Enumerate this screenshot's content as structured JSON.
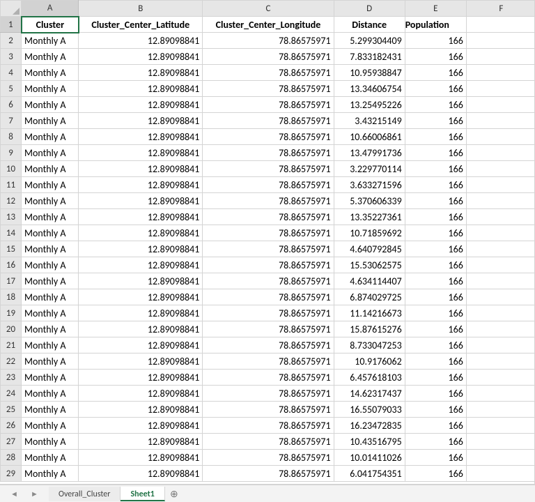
{
  "columns": [
    "A",
    "B",
    "C",
    "D",
    "E",
    "F"
  ],
  "header_row": {
    "A": "Cluster",
    "B": "Cluster_Center_Latitude",
    "C": "Cluster_Center_Longitude",
    "D": "Distance",
    "E": "Population"
  },
  "rows": [
    {
      "n": 2,
      "A": "Monthly A",
      "B": "12.89098841",
      "C": "78.86575971",
      "D": "5.299304409",
      "E": "166"
    },
    {
      "n": 3,
      "A": "Monthly A",
      "B": "12.89098841",
      "C": "78.86575971",
      "D": "7.833182431",
      "E": "166"
    },
    {
      "n": 4,
      "A": "Monthly A",
      "B": "12.89098841",
      "C": "78.86575971",
      "D": "10.95938847",
      "E": "166"
    },
    {
      "n": 5,
      "A": "Monthly A",
      "B": "12.89098841",
      "C": "78.86575971",
      "D": "13.34606754",
      "E": "166"
    },
    {
      "n": 6,
      "A": "Monthly A",
      "B": "12.89098841",
      "C": "78.86575971",
      "D": "13.25495226",
      "E": "166"
    },
    {
      "n": 7,
      "A": "Monthly A",
      "B": "12.89098841",
      "C": "78.86575971",
      "D": "3.43215149",
      "E": "166"
    },
    {
      "n": 8,
      "A": "Monthly A",
      "B": "12.89098841",
      "C": "78.86575971",
      "D": "10.66006861",
      "E": "166"
    },
    {
      "n": 9,
      "A": "Monthly A",
      "B": "12.89098841",
      "C": "78.86575971",
      "D": "13.47991736",
      "E": "166"
    },
    {
      "n": 10,
      "A": "Monthly A",
      "B": "12.89098841",
      "C": "78.86575971",
      "D": "3.229770114",
      "E": "166"
    },
    {
      "n": 11,
      "A": "Monthly A",
      "B": "12.89098841",
      "C": "78.86575971",
      "D": "3.633271596",
      "E": "166"
    },
    {
      "n": 12,
      "A": "Monthly A",
      "B": "12.89098841",
      "C": "78.86575971",
      "D": "5.370606339",
      "E": "166"
    },
    {
      "n": 13,
      "A": "Monthly A",
      "B": "12.89098841",
      "C": "78.86575971",
      "D": "13.35227361",
      "E": "166"
    },
    {
      "n": 14,
      "A": "Monthly A",
      "B": "12.89098841",
      "C": "78.86575971",
      "D": "10.71859692",
      "E": "166"
    },
    {
      "n": 15,
      "A": "Monthly A",
      "B": "12.89098841",
      "C": "78.86575971",
      "D": "4.640792845",
      "E": "166"
    },
    {
      "n": 16,
      "A": "Monthly A",
      "B": "12.89098841",
      "C": "78.86575971",
      "D": "15.53062575",
      "E": "166"
    },
    {
      "n": 17,
      "A": "Monthly A",
      "B": "12.89098841",
      "C": "78.86575971",
      "D": "4.634114407",
      "E": "166"
    },
    {
      "n": 18,
      "A": "Monthly A",
      "B": "12.89098841",
      "C": "78.86575971",
      "D": "6.874029725",
      "E": "166"
    },
    {
      "n": 19,
      "A": "Monthly A",
      "B": "12.89098841",
      "C": "78.86575971",
      "D": "11.14216673",
      "E": "166"
    },
    {
      "n": 20,
      "A": "Monthly A",
      "B": "12.89098841",
      "C": "78.86575971",
      "D": "15.87615276",
      "E": "166"
    },
    {
      "n": 21,
      "A": "Monthly A",
      "B": "12.89098841",
      "C": "78.86575971",
      "D": "8.733047253",
      "E": "166"
    },
    {
      "n": 22,
      "A": "Monthly A",
      "B": "12.89098841",
      "C": "78.86575971",
      "D": "10.9176062",
      "E": "166"
    },
    {
      "n": 23,
      "A": "Monthly A",
      "B": "12.89098841",
      "C": "78.86575971",
      "D": "6.457618103",
      "E": "166"
    },
    {
      "n": 24,
      "A": "Monthly A",
      "B": "12.89098841",
      "C": "78.86575971",
      "D": "14.62317437",
      "E": "166"
    },
    {
      "n": 25,
      "A": "Monthly A",
      "B": "12.89098841",
      "C": "78.86575971",
      "D": "16.55079033",
      "E": "166"
    },
    {
      "n": 26,
      "A": "Monthly A",
      "B": "12.89098841",
      "C": "78.86575971",
      "D": "16.23472835",
      "E": "166"
    },
    {
      "n": 27,
      "A": "Monthly A",
      "B": "12.89098841",
      "C": "78.86575971",
      "D": "10.43516795",
      "E": "166"
    },
    {
      "n": 28,
      "A": "Monthly A",
      "B": "12.89098841",
      "C": "78.86575971",
      "D": "10.01411026",
      "E": "166"
    },
    {
      "n": 29,
      "A": "Monthly A",
      "B": "12.89098841",
      "C": "78.86575971",
      "D": "6.041754351",
      "E": "166"
    }
  ],
  "tabs": {
    "inactive": "Overall_Cluster",
    "active": "Sheet1",
    "add_icon": "⊕"
  },
  "nav": {
    "prev": "◄",
    "next": "►"
  },
  "colors": {
    "accent": "#217346",
    "header_bg": "#e6e6e6",
    "gridline": "#d4d4d4"
  }
}
